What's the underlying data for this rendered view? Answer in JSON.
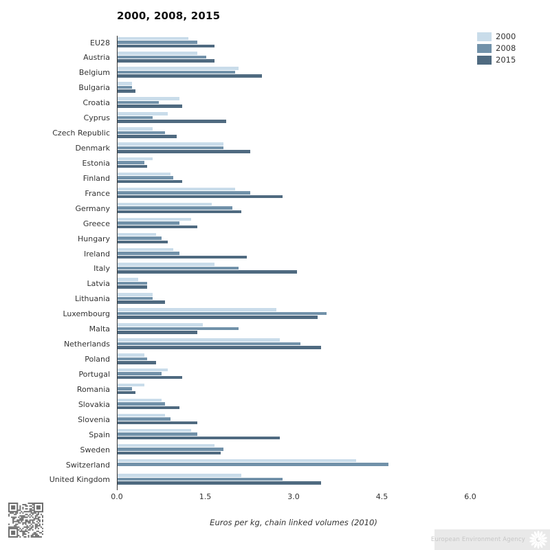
{
  "chart_data": {
    "type": "bar",
    "orientation": "horizontal",
    "title": "2000, 2008, 2015",
    "xlabel": "Euros per kg, chain linked volumes (2010)",
    "xlim": [
      0,
      6
    ],
    "xtick_labels": [
      "0.0",
      "1.5",
      "3.0",
      "4.5",
      "6.0"
    ],
    "grid": false,
    "legend_position": "top-right",
    "categories": [
      "EU28",
      "Austria",
      "Belgium",
      "Bulgaria",
      "Croatia",
      "Cyprus",
      "Czech Republic",
      "Denmark",
      "Estonia",
      "Finland",
      "France",
      "Germany",
      "Greece",
      "Hungary",
      "Ireland",
      "Italy",
      "Latvia",
      "Lithuania",
      "Luxembourg",
      "Malta",
      "Netherlands",
      "Poland",
      "Portugal",
      "Romania",
      "Slovakia",
      "Slovenia",
      "Spain",
      "Sweden",
      "Switzerland",
      "United Kingdom"
    ],
    "series": [
      {
        "name": "2000",
        "color": "#c9dcea",
        "values": [
          1.2,
          1.35,
          2.05,
          0.25,
          1.05,
          0.85,
          0.6,
          1.8,
          0.6,
          0.9,
          2.0,
          1.6,
          1.25,
          0.65,
          0.95,
          1.65,
          0.35,
          0.6,
          2.7,
          1.45,
          2.75,
          0.45,
          0.85,
          0.45,
          0.75,
          0.8,
          1.25,
          1.65,
          4.05,
          2.1
        ]
      },
      {
        "name": "2008",
        "color": "#7191a9",
        "values": [
          1.35,
          1.5,
          2.0,
          0.25,
          0.7,
          0.6,
          0.8,
          1.8,
          0.45,
          0.95,
          2.25,
          1.95,
          1.05,
          0.75,
          1.05,
          2.05,
          0.5,
          0.6,
          3.55,
          2.05,
          3.1,
          0.5,
          0.75,
          0.25,
          0.8,
          0.9,
          1.35,
          1.8,
          4.6,
          2.8
        ]
      },
      {
        "name": "2015",
        "color": "#4f6a80",
        "values": [
          1.65,
          1.65,
          2.45,
          0.3,
          1.1,
          1.85,
          1.0,
          2.25,
          0.5,
          1.1,
          2.8,
          2.1,
          1.35,
          0.85,
          2.2,
          3.05,
          0.5,
          0.8,
          3.4,
          1.35,
          3.45,
          0.65,
          1.1,
          0.3,
          1.05,
          1.35,
          2.75,
          1.75,
          null,
          3.45
        ]
      }
    ]
  },
  "legend": [
    {
      "label": "2000",
      "color": "#c9dcea"
    },
    {
      "label": "2008",
      "color": "#7191a9"
    },
    {
      "label": "2015",
      "color": "#4f6a80"
    }
  ],
  "footer": {
    "agency": "European Environment Agency",
    "qr_icon": "qr-code",
    "logo_icon": "eea-sunburst"
  },
  "colors": {
    "axis": "#333333",
    "text": "#333333",
    "title": "#111111",
    "footer_band": "#e9e9e9",
    "qr": "#6f6f6f"
  }
}
